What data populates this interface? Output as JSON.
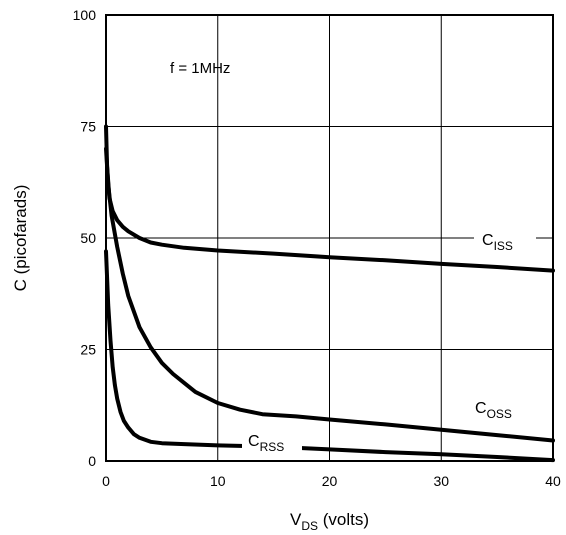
{
  "chart_data": {
    "type": "line",
    "title": "",
    "xlabel": {
      "main": "V",
      "sub": "DS",
      "suffix": " (volts)"
    },
    "ylabel": "C (picofarads)",
    "xlim": [
      0,
      40
    ],
    "ylim": [
      0,
      100
    ],
    "x_ticks": [
      "0",
      "10",
      "20",
      "30",
      "40"
    ],
    "y_ticks": [
      "0",
      "25",
      "50",
      "75",
      "100"
    ],
    "grid": true,
    "annotation": "f = 1MHz",
    "series": [
      {
        "name": "C_ISS",
        "label_main": "C",
        "label_sub": "ISS",
        "points": [
          [
            0,
            75
          ],
          [
            0.1,
            66
          ],
          [
            0.3,
            59
          ],
          [
            0.6,
            56
          ],
          [
            1,
            54
          ],
          [
            1.5,
            52.5
          ],
          [
            2,
            51.5
          ],
          [
            3,
            50
          ],
          [
            4,
            49
          ],
          [
            5,
            48.5
          ],
          [
            7,
            47.8
          ],
          [
            10,
            47.2
          ],
          [
            15,
            46.5
          ],
          [
            20,
            45.7
          ],
          [
            25,
            45
          ],
          [
            30,
            44.2
          ],
          [
            35,
            43.5
          ],
          [
            40,
            42.7
          ]
        ]
      },
      {
        "name": "C_OSS",
        "label_main": "C",
        "label_sub": "OSS",
        "points": [
          [
            0,
            70
          ],
          [
            0.2,
            62
          ],
          [
            0.5,
            55
          ],
          [
            1,
            48
          ],
          [
            1.5,
            42
          ],
          [
            2,
            37
          ],
          [
            3,
            30
          ],
          [
            4,
            25.5
          ],
          [
            5,
            22
          ],
          [
            6,
            19.5
          ],
          [
            7,
            17.5
          ],
          [
            8,
            15.5
          ],
          [
            10,
            13
          ],
          [
            12,
            11.5
          ],
          [
            14,
            10.5
          ],
          [
            17,
            10
          ],
          [
            20,
            9.3
          ],
          [
            25,
            8.2
          ],
          [
            30,
            7
          ],
          [
            35,
            5.8
          ],
          [
            40,
            4.6
          ]
        ]
      },
      {
        "name": "C_RSS",
        "label_main": "C",
        "label_sub": "RSS",
        "points": [
          [
            0,
            47
          ],
          [
            0.2,
            35
          ],
          [
            0.4,
            27
          ],
          [
            0.6,
            21
          ],
          [
            0.8,
            17
          ],
          [
            1,
            14
          ],
          [
            1.3,
            11
          ],
          [
            1.6,
            9
          ],
          [
            2,
            7.5
          ],
          [
            2.5,
            6
          ],
          [
            3,
            5.2
          ],
          [
            4,
            4.3
          ],
          [
            5,
            4
          ],
          [
            7,
            3.8
          ],
          [
            10,
            3.5
          ],
          [
            15,
            3.2
          ],
          [
            20,
            2.6
          ],
          [
            25,
            2
          ],
          [
            30,
            1.5
          ],
          [
            35,
            0.9
          ],
          [
            40,
            0.2
          ]
        ]
      }
    ]
  }
}
